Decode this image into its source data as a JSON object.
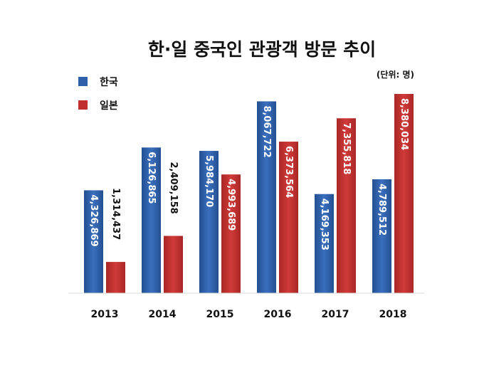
{
  "chart_data": {
    "type": "bar",
    "title": "한·일 중국인 관광객 방문 추이",
    "unit_label": "(단위: 명)",
    "categories": [
      "2013",
      "2014",
      "2015",
      "2016",
      "2017",
      "2018"
    ],
    "series": [
      {
        "name": "한국",
        "color": "#2f5fa8",
        "values": [
          4326869,
          6126865,
          5984170,
          8067722,
          4169353,
          4789512
        ],
        "labels": [
          "4,326,869",
          "6,126,865",
          "5,984,170",
          "8,067,722",
          "4,169,353",
          "4,789,512"
        ]
      },
      {
        "name": "일본",
        "color": "#c0302f",
        "values": [
          1314437,
          2409158,
          4993689,
          6373564,
          7355818,
          8380034
        ],
        "labels": [
          "1,314,437",
          "2,409,158",
          "4,993,689",
          "6,373,564",
          "7,355,818",
          "8,380,034"
        ]
      }
    ],
    "ylim": [
      0,
      8500000
    ],
    "grid": false,
    "legend": "top-left"
  }
}
